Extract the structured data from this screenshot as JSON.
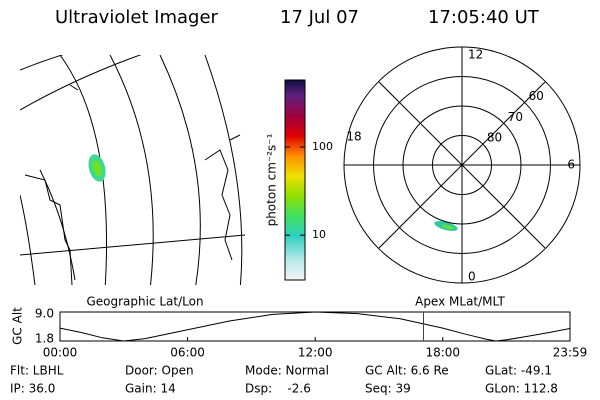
{
  "header": {
    "title": "Ultraviolet Imager",
    "date": "17 Jul 07",
    "time": "17:05:40 UT"
  },
  "colorbar": {
    "label": "photon cm⁻²s⁻¹",
    "ticks": [
      10,
      100
    ],
    "lim": [
      3.1,
      577
    ],
    "log": true
  },
  "polar": {
    "mlt_labels": [
      "12",
      "6",
      "0",
      "18"
    ],
    "lat_circles": [
      60,
      70,
      80
    ]
  },
  "map_label": "Geographic Lat/Lon",
  "polar_label": "Apex MLat/MLT",
  "altitude": {
    "ylabel": "GC Alt",
    "yticks": [
      1.8,
      {
        "value": 9,
        "label": "9.0"
      }
    ],
    "ylim": [
      1.8,
      9
    ],
    "xlim": [
      0,
      23.983
    ],
    "xticks": [
      {
        "value": 0,
        "label": "00:00"
      },
      {
        "value": 6,
        "label": "06:00"
      },
      {
        "value": 12,
        "label": "12:00"
      },
      {
        "value": 18,
        "label": "18:00"
      },
      {
        "value": 23.983,
        "label": "23:59"
      }
    ],
    "x": [
      0,
      1,
      2,
      3,
      4,
      6,
      8,
      10,
      12,
      14,
      16,
      18,
      19,
      20,
      20.5,
      21,
      22,
      23,
      23.983
    ],
    "values": [
      5.0,
      3.9,
      2.6,
      1.8,
      2.4,
      4.6,
      6.8,
      8.4,
      9.0,
      8.6,
      7.3,
      5.0,
      3.6,
      2.3,
      1.8,
      2.1,
      3.0,
      3.9,
      4.9
    ],
    "current_time": 17.094,
    "marker_color": "#e00000"
  },
  "status": [
    [
      "Flt: LBHL",
      "Door: Open",
      "Mode: Normal",
      "GC Alt: 6.6 Re",
      "GLat: -49.1"
    ],
    [
      "IP: 36.0",
      "Gain: 14",
      "Dsp:    -2.6",
      "Seq: 39",
      "GLon: 112.8"
    ]
  ]
}
